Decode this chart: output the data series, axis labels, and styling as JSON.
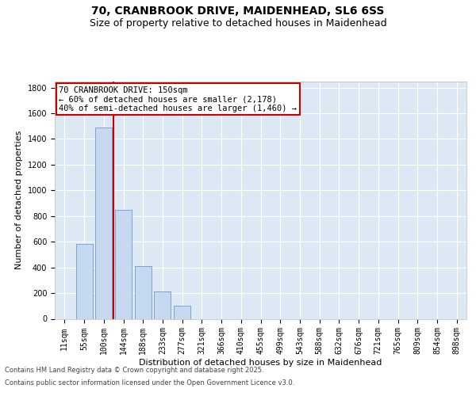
{
  "title_line1": "70, CRANBROOK DRIVE, MAIDENHEAD, SL6 6SS",
  "title_line2": "Size of property relative to detached houses in Maidenhead",
  "xlabel": "Distribution of detached houses by size in Maidenhead",
  "ylabel": "Number of detached properties",
  "annotation_title": "70 CRANBROOK DRIVE: 150sqm",
  "annotation_line2": "← 60% of detached houses are smaller (2,178)",
  "annotation_line3": "40% of semi-detached houses are larger (1,460) →",
  "footnote1": "Contains HM Land Registry data © Crown copyright and database right 2025.",
  "footnote2": "Contains public sector information licensed under the Open Government Licence v3.0.",
  "categories": [
    "11sqm",
    "55sqm",
    "100sqm",
    "144sqm",
    "188sqm",
    "233sqm",
    "277sqm",
    "321sqm",
    "366sqm",
    "410sqm",
    "455sqm",
    "499sqm",
    "543sqm",
    "588sqm",
    "632sqm",
    "676sqm",
    "721sqm",
    "765sqm",
    "809sqm",
    "854sqm",
    "898sqm"
  ],
  "values": [
    0,
    580,
    1490,
    850,
    410,
    210,
    100,
    0,
    0,
    0,
    0,
    0,
    0,
    0,
    0,
    0,
    0,
    0,
    0,
    0,
    0
  ],
  "bar_color": "#c6d9f0",
  "bar_edge_color": "#5a8ac6",
  "vline_x": 2.5,
  "vline_color": "#cc0000",
  "annotation_box_color": "#cc0000",
  "ylim": [
    0,
    1850
  ],
  "yticks": [
    0,
    200,
    400,
    600,
    800,
    1000,
    1200,
    1400,
    1600,
    1800
  ],
  "background_color": "#dce9f5",
  "grid_color": "#ffffff",
  "title_fontsize": 10,
  "subtitle_fontsize": 9,
  "axis_fontsize": 8,
  "tick_fontsize": 7,
  "annot_fontsize": 7.5,
  "footer_fontsize": 6
}
